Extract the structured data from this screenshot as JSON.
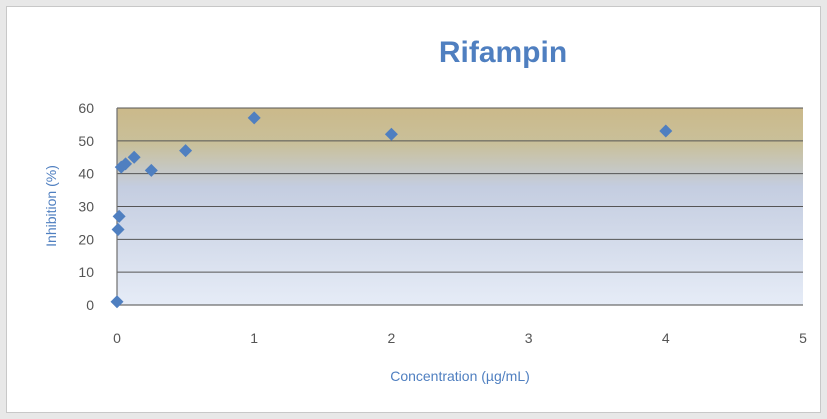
{
  "chart_data": {
    "type": "scatter",
    "title": "Rifampin",
    "xlabel": "Concentration (µg/mL)",
    "ylabel": "Inhibition (%)",
    "xlim": [
      0,
      5
    ],
    "ylim": [
      0,
      60
    ],
    "xticks": [
      0,
      1,
      2,
      3,
      4,
      5
    ],
    "yticks": [
      0,
      10,
      20,
      30,
      40,
      50,
      60
    ],
    "grid": true,
    "legend": "none",
    "series": [
      {
        "x": [
          0,
          0.0078,
          0.0156,
          0.031,
          0.0625,
          0.125,
          0.25,
          0.5,
          1,
          2,
          4
        ],
        "y": [
          1,
          23,
          27,
          42,
          43,
          45,
          41,
          47,
          57,
          52,
          53
        ]
      }
    ],
    "colors": {
      "marker": "#4f7fc0",
      "title": "#4f7fc0",
      "axis_label": "#4f7fc0",
      "gridline": "#555555",
      "plot_top": "#cbb98a",
      "plot_bottom": "#e6ecf7"
    }
  }
}
